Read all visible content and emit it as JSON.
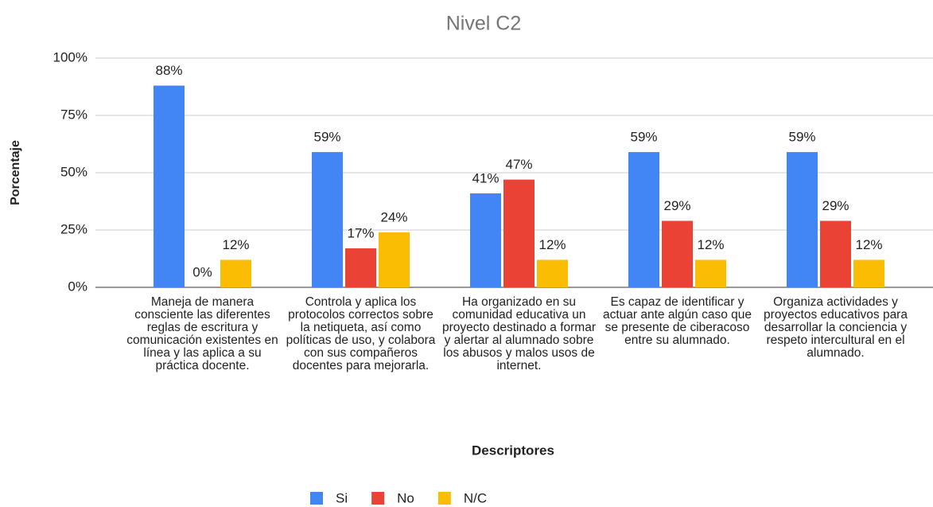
{
  "chart_data": {
    "type": "bar",
    "title": "Nivel C2",
    "x_label": "Descriptores",
    "y_label": "Porcentaje",
    "categories": [
      "Maneja de manera consciente las diferentes reglas de escritura y comunicación existentes en línea y las aplica a su práctica docente.",
      "Controla y aplica los protocolos correctos sobre la netiqueta, así como políticas de uso, y colabora con sus compañeros docentes para mejorarla.",
      "Ha organizado en su comunidad educativa un proyecto destinado a formar y alertar al alumnado sobre los abusos y malos usos de internet.",
      "Es capaz de identificar y actuar ante algún caso que se presente de ciberacoso entre su alumnado.",
      "Organiza actividades y proyectos educativos para desarrollar la conciencia y respeto intercultural en el alumnado."
    ],
    "series": [
      {
        "name": "Si",
        "color": "#4285f4",
        "values": [
          88,
          59,
          41,
          59,
          59
        ],
        "value_labels": [
          "88%",
          "59%",
          "41%",
          "59%",
          "59%"
        ]
      },
      {
        "name": "No",
        "color": "#ea4335",
        "values": [
          0,
          17,
          47,
          29,
          29
        ],
        "value_labels": [
          "0%",
          "17%",
          "47%",
          "29%",
          "29%"
        ]
      },
      {
        "name": "N/C",
        "color": "#fbbc04",
        "values": [
          12,
          24,
          12,
          12,
          12
        ],
        "value_labels": [
          "12%",
          "24%",
          "12%",
          "12%",
          "12%"
        ]
      }
    ],
    "ylim": [
      0,
      100
    ],
    "yticks": [
      {
        "value": 0,
        "label": "0%"
      },
      {
        "value": 25,
        "label": "25%"
      },
      {
        "value": 50,
        "label": "50%"
      },
      {
        "value": 75,
        "label": "75%"
      },
      {
        "value": 100,
        "label": "100%"
      }
    ],
    "grid": true,
    "legend": "bottom"
  }
}
